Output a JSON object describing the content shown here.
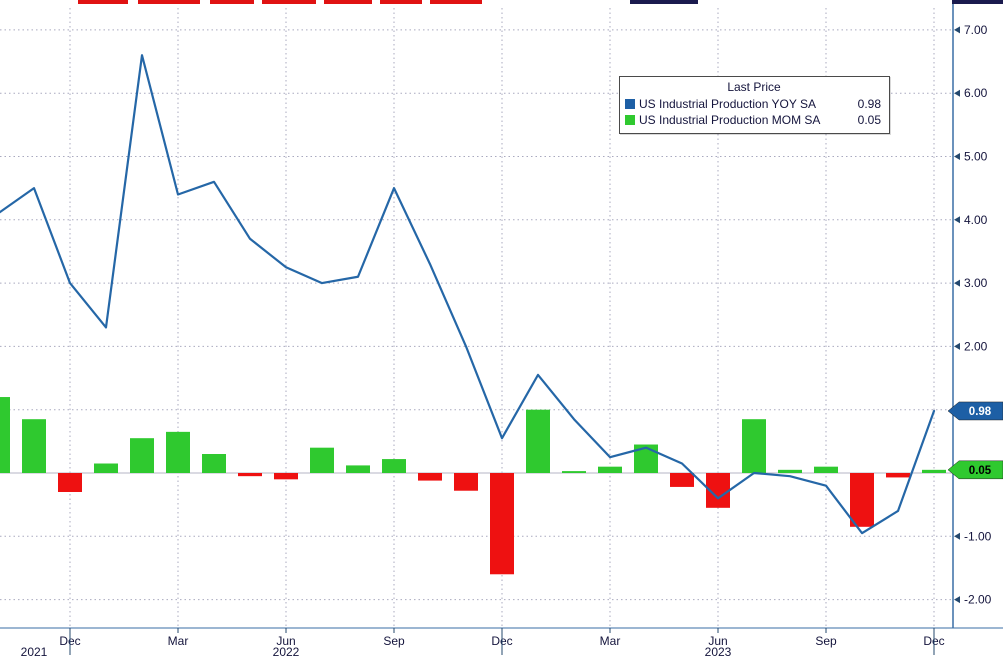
{
  "legend": {
    "title": "Last Price",
    "items": [
      {
        "label": "US Industrial Production YOY SA",
        "value": "0.98",
        "color": "#1d5fa5"
      },
      {
        "label": "US Industrial Production MOM SA",
        "value": "0.05",
        "color": "#2fc92f"
      }
    ]
  },
  "axis": {
    "right": [
      {
        "text": "7.00",
        "value": 7
      },
      {
        "text": "6.00",
        "value": 6
      },
      {
        "text": "5.00",
        "value": 5
      },
      {
        "text": "4.00",
        "value": 4
      },
      {
        "text": "3.00",
        "value": 3
      },
      {
        "text": "2.00",
        "value": 2
      },
      {
        "text": "-1.00",
        "value": -1
      },
      {
        "text": "-2.00",
        "value": -2
      }
    ],
    "badges": [
      {
        "text": "0.98",
        "value": 0.98,
        "bg": "#1d5fa5",
        "fg": "#ffffff"
      },
      {
        "text": "0.05",
        "value": 0.05,
        "bg": "#2fc92f",
        "fg": "#000000"
      }
    ],
    "x_ticks": [
      {
        "index": 2,
        "label": "Dec"
      },
      {
        "index": 5,
        "label": "Mar"
      },
      {
        "index": 8,
        "label": "Jun"
      },
      {
        "index": 11,
        "label": "Sep"
      },
      {
        "index": 14,
        "label": "Dec"
      },
      {
        "index": 17,
        "label": "Mar"
      },
      {
        "index": 20,
        "label": "Jun"
      },
      {
        "index": 23,
        "label": "Sep"
      },
      {
        "index": 26,
        "label": "Dec"
      }
    ],
    "years": [
      {
        "label": "2021",
        "center_index": 1
      },
      {
        "label": "2022",
        "center_index": 8
      },
      {
        "label": "2023",
        "center_index": 20
      }
    ],
    "year_separators": [
      2,
      14,
      26
    ]
  },
  "decor": {
    "top_fragments": [
      {
        "x": 78,
        "w": 50,
        "color": "#e01212"
      },
      {
        "x": 138,
        "w": 62,
        "color": "#e01212"
      },
      {
        "x": 210,
        "w": 44,
        "color": "#e01212"
      },
      {
        "x": 262,
        "w": 54,
        "color": "#e01212"
      },
      {
        "x": 324,
        "w": 48,
        "color": "#e01212"
      },
      {
        "x": 380,
        "w": 42,
        "color": "#e01212"
      },
      {
        "x": 430,
        "w": 52,
        "color": "#e01212"
      },
      {
        "x": 630,
        "w": 68,
        "color": "#1a1a4e"
      },
      {
        "x": 952,
        "w": 51,
        "color": "#1a1a4e"
      }
    ]
  },
  "chart_data": {
    "type": "line+bar",
    "title": "",
    "x": [
      "Oct 2021",
      "Nov 2021",
      "Dec 2021",
      "Jan 2022",
      "Feb 2022",
      "Mar 2022",
      "Apr 2022",
      "May 2022",
      "Jun 2022",
      "Jul 2022",
      "Aug 2022",
      "Sep 2022",
      "Oct 2022",
      "Nov 2022",
      "Dec 2022",
      "Jan 2023",
      "Feb 2023",
      "Mar 2023",
      "Apr 2023",
      "May 2023",
      "Jun 2023",
      "Jul 2023",
      "Aug 2023",
      "Sep 2023",
      "Oct 2023",
      "Nov 2023",
      "Dec 2023"
    ],
    "series": [
      {
        "name": "US Industrial Production YOY SA",
        "type": "line",
        "color": "#2567a7",
        "last": 0.98,
        "values": [
          4.1,
          4.5,
          3.0,
          2.3,
          6.6,
          4.4,
          4.6,
          3.7,
          3.25,
          3.0,
          3.1,
          4.5,
          3.3,
          2.0,
          0.55,
          1.55,
          0.85,
          0.25,
          0.4,
          0.15,
          -0.4,
          0.0,
          -0.05,
          -0.2,
          -0.95,
          -0.6,
          0.98
        ]
      },
      {
        "name": "US Industrial Production MOM SA",
        "type": "bar",
        "color_positive": "#2fc92f",
        "color_negative": "#ee1111",
        "last": 0.05,
        "values": [
          1.2,
          0.85,
          -0.3,
          0.15,
          0.55,
          0.65,
          0.3,
          -0.05,
          -0.1,
          0.4,
          0.12,
          0.22,
          -0.12,
          -0.28,
          -1.6,
          1.0,
          0.03,
          0.1,
          0.45,
          -0.22,
          -0.55,
          0.85,
          0.05,
          0.1,
          -0.85,
          -0.07,
          0.05
        ]
      }
    ],
    "ylim": [
      -2.3,
      7.3
    ],
    "yticks": [
      -2,
      -1,
      0,
      1,
      2,
      3,
      4,
      5,
      6,
      7
    ],
    "grid": true,
    "legend_position": "top-right"
  }
}
